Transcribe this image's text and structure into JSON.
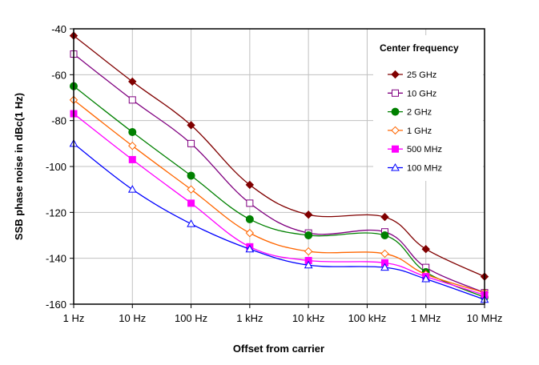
{
  "chart_data": {
    "type": "line",
    "title": "",
    "xlabel": "Offset from carrier",
    "ylabel": "SSB phase noise in dBc(1 Hz)",
    "x_scale": "log",
    "x_ticks": [
      1,
      10,
      100,
      1000,
      10000,
      100000,
      1000000,
      10000000
    ],
    "x_tick_labels": [
      "1 Hz",
      "10 Hz",
      "100 Hz",
      "1 kHz",
      "10 kHz",
      "100 kHz",
      "1 MHz",
      "10 MHz"
    ],
    "y_ticks": [
      -40,
      -60,
      -80,
      -100,
      -120,
      -140,
      -160
    ],
    "ylim": [
      -160,
      -40
    ],
    "xlim": [
      1,
      10000000
    ],
    "grid": true,
    "legend_title": "Center frequency",
    "legend_placement": "top-right",
    "x": [
      1,
      10,
      100,
      1000,
      10000,
      200000,
      1000000,
      10000000
    ],
    "series": [
      {
        "name": "25 GHz",
        "color": "#800000",
        "marker": "diamond-filled",
        "values": [
          -43,
          -63,
          -82,
          -108,
          -121,
          -122,
          -136,
          -148
        ]
      },
      {
        "name": "10 GHz",
        "color": "#800080",
        "marker": "square-open",
        "values": [
          -51,
          -71,
          -90,
          -116,
          -129,
          -128.5,
          -144,
          -155
        ]
      },
      {
        "name": "2 GHz",
        "color": "#008000",
        "marker": "circle-filled",
        "values": [
          -65,
          -85,
          -104,
          -123,
          -130,
          -130,
          -146,
          -157
        ]
      },
      {
        "name": "1 GHz",
        "color": "#ff6600",
        "marker": "diamond-open",
        "values": [
          -71,
          -91,
          -110,
          -129,
          -137,
          -138,
          -147,
          -155
        ]
      },
      {
        "name": "500 MHz",
        "color": "#ff00ff",
        "marker": "square-filled",
        "values": [
          -77,
          -97,
          -116,
          -135,
          -141,
          -142,
          -148,
          -156
        ]
      },
      {
        "name": "100 MHz",
        "color": "#0000ff",
        "marker": "triangle-open",
        "values": [
          -90,
          -110,
          -125,
          -136,
          -143,
          -144,
          -149,
          -158
        ]
      }
    ]
  }
}
